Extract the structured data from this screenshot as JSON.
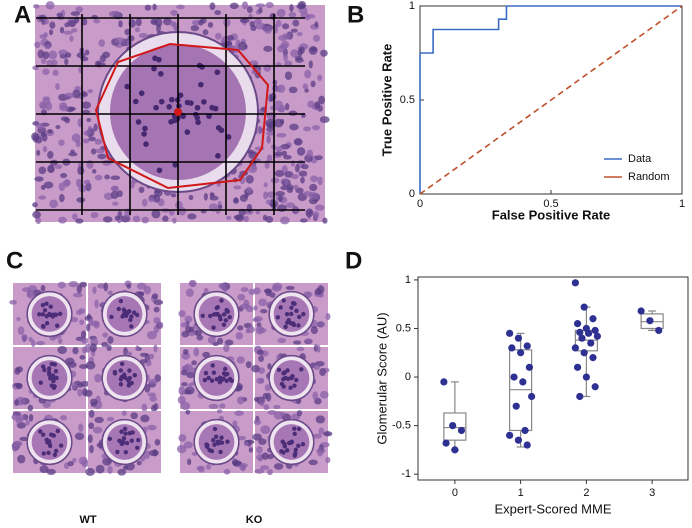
{
  "panel_labels": [
    "A",
    "B",
    "C",
    "D"
  ],
  "image_labels": [
    "WT",
    "KO"
  ],
  "chart_data": [
    {
      "type": "line",
      "xlabel": "False Positive Rate",
      "ylabel": "True Positive Rate",
      "xlim": [
        0,
        1
      ],
      "ylim": [
        0,
        1
      ],
      "xticks": [
        0,
        0.5,
        1
      ],
      "yticks": [
        0,
        0.5,
        1
      ],
      "legend": "lower-right",
      "series": [
        {
          "name": "Data",
          "color": "#3b6cc4",
          "style": "solid",
          "x": [
            0,
            0,
            0.05,
            0.05,
            0.3,
            0.3,
            0.33,
            0.33,
            1
          ],
          "values": [
            0,
            0.75,
            0.75,
            0.875,
            0.875,
            0.93,
            0.93,
            1,
            1
          ]
        },
        {
          "name": "Random",
          "color": "#c0502a",
          "style": "dashed",
          "x": [
            0,
            1
          ],
          "values": [
            0,
            1
          ]
        }
      ]
    },
    {
      "type": "box",
      "xlabel": "Expert-Scored MME",
      "ylabel": "Glomerular Score (AU)",
      "categories": [
        "0",
        "1",
        "2",
        "3"
      ],
      "ylim": [
        -1.06,
        1.03
      ],
      "yticks": [
        -1,
        -0.5,
        0,
        0.5,
        1
      ],
      "color": "#2f3192",
      "boxes": [
        {
          "min": -0.75,
          "q1": -0.65,
          "median": -0.52,
          "q3": -0.37,
          "max": -0.05
        },
        {
          "min": -0.72,
          "q1": -0.55,
          "median": -0.13,
          "q3": 0.28,
          "max": 0.45
        },
        {
          "min": -0.2,
          "q1": 0.27,
          "median": 0.38,
          "q3": 0.48,
          "max": 0.72
        },
        {
          "min": 0.48,
          "q1": 0.5,
          "median": 0.57,
          "q3": 0.65,
          "max": 0.68
        }
      ],
      "points": [
        [
          -0.05,
          -0.5,
          -0.55,
          -0.68,
          -0.75
        ],
        [
          0.45,
          0.4,
          0.32,
          0.3,
          0.25,
          0.1,
          0.0,
          -0.05,
          -0.2,
          -0.3,
          -0.55,
          -0.6,
          -0.65,
          -0.7
        ],
        [
          0.97,
          0.72,
          0.6,
          0.55,
          0.5,
          0.48,
          0.46,
          0.45,
          0.42,
          0.4,
          0.35,
          0.3,
          0.25,
          0.2,
          0.1,
          0.0,
          -0.1,
          -0.2
        ],
        [
          0.68,
          0.58,
          0.48
        ]
      ]
    }
  ]
}
